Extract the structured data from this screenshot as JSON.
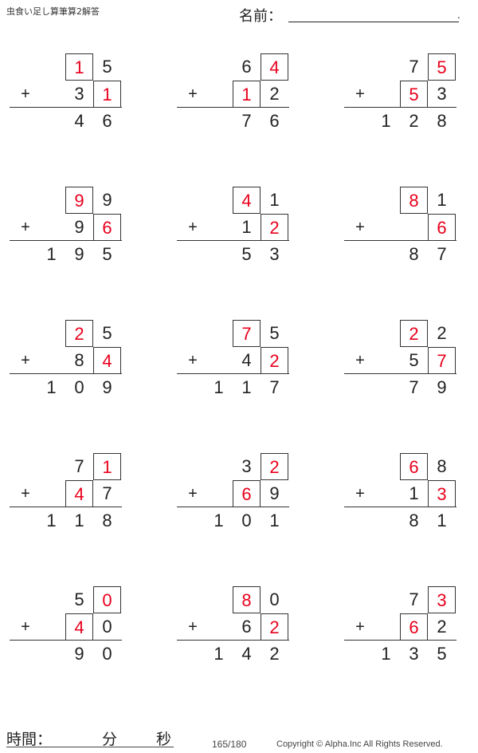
{
  "header": {
    "title": "虫食い足し算筆算2解答",
    "name_label": "名前：",
    "name_end": "."
  },
  "colors": {
    "hidden_digit": "#e8001c",
    "text": "#222222"
  },
  "operator": "+",
  "problems": [
    {
      "top": [
        "1",
        "5"
      ],
      "bottom": [
        "3",
        "1"
      ],
      "result": [
        "",
        "4",
        "6"
      ],
      "hidden_top": 0,
      "hidden_bottom": 1
    },
    {
      "top": [
        "6",
        "4"
      ],
      "bottom": [
        "1",
        "2"
      ],
      "result": [
        "",
        "7",
        "6"
      ],
      "hidden_top": 1,
      "hidden_bottom": 0
    },
    {
      "top": [
        "7",
        "5"
      ],
      "bottom": [
        "5",
        "3"
      ],
      "result": [
        "1",
        "2",
        "8"
      ],
      "hidden_top": 1,
      "hidden_bottom": 0
    },
    {
      "top": [
        "9",
        "9"
      ],
      "bottom": [
        "9",
        "6"
      ],
      "result": [
        "1",
        "9",
        "5"
      ],
      "hidden_top": 0,
      "hidden_bottom": 1
    },
    {
      "top": [
        "4",
        "1"
      ],
      "bottom": [
        "1",
        "2"
      ],
      "result": [
        "",
        "5",
        "3"
      ],
      "hidden_top": 0,
      "hidden_bottom": 1
    },
    {
      "top": [
        "8",
        "1"
      ],
      "bottom": [
        "",
        "6"
      ],
      "result": [
        "",
        "8",
        "7"
      ],
      "hidden_top": 0,
      "hidden_bottom": 1
    },
    {
      "top": [
        "2",
        "5"
      ],
      "bottom": [
        "8",
        "4"
      ],
      "result": [
        "1",
        "0",
        "9"
      ],
      "hidden_top": 0,
      "hidden_bottom": 1
    },
    {
      "top": [
        "7",
        "5"
      ],
      "bottom": [
        "4",
        "2"
      ],
      "result": [
        "1",
        "1",
        "7"
      ],
      "hidden_top": 0,
      "hidden_bottom": 1
    },
    {
      "top": [
        "2",
        "2"
      ],
      "bottom": [
        "5",
        "7"
      ],
      "result": [
        "",
        "7",
        "9"
      ],
      "hidden_top": 0,
      "hidden_bottom": 1
    },
    {
      "top": [
        "7",
        "1"
      ],
      "bottom": [
        "4",
        "7"
      ],
      "result": [
        "1",
        "1",
        "8"
      ],
      "hidden_top": 1,
      "hidden_bottom": 0
    },
    {
      "top": [
        "3",
        "2"
      ],
      "bottom": [
        "6",
        "9"
      ],
      "result": [
        "1",
        "0",
        "1"
      ],
      "hidden_top": 1,
      "hidden_bottom": 0
    },
    {
      "top": [
        "6",
        "8"
      ],
      "bottom": [
        "1",
        "3"
      ],
      "result": [
        "",
        "8",
        "1"
      ],
      "hidden_top": 0,
      "hidden_bottom": 1
    },
    {
      "top": [
        "5",
        "0"
      ],
      "bottom": [
        "4",
        "0"
      ],
      "result": [
        "",
        "9",
        "0"
      ],
      "hidden_top": 1,
      "hidden_bottom": 0
    },
    {
      "top": [
        "8",
        "0"
      ],
      "bottom": [
        "6",
        "2"
      ],
      "result": [
        "1",
        "4",
        "2"
      ],
      "hidden_top": 0,
      "hidden_bottom": 1
    },
    {
      "top": [
        "7",
        "3"
      ],
      "bottom": [
        "6",
        "2"
      ],
      "result": [
        "1",
        "3",
        "5"
      ],
      "hidden_top": 1,
      "hidden_bottom": 0
    }
  ],
  "footer": {
    "time_label": "時間：",
    "minutes": "分",
    "seconds": "秒",
    "page": "165/180",
    "copyright": "Copyright © Alpha.Inc All Rights Reserved."
  }
}
